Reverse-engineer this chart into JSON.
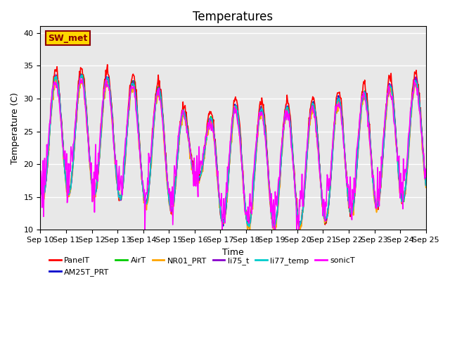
{
  "title": "Temperatures",
  "xlabel": "Time",
  "ylabel": "Temperature (C)",
  "ylim": [
    10,
    41
  ],
  "x_tick_labels": [
    "Sep 10",
    "Sep 11",
    "Sep 12",
    "Sep 13",
    "Sep 14",
    "Sep 15",
    "Sep 16",
    "Sep 17",
    "Sep 18",
    "Sep 19",
    "Sep 20",
    "Sep 21",
    "Sep 22",
    "Sep 23",
    "Sep 24",
    "Sep 25"
  ],
  "annotation_text": "SW_met",
  "annotation_color": "#8B0000",
  "annotation_bg": "#FFD700",
  "series_names": [
    "PanelT",
    "AM25T_PRT",
    "AirT",
    "NR01_PRT",
    "li75_t",
    "li77_temp",
    "sonicT"
  ],
  "series_colors": [
    "#FF0000",
    "#0000CC",
    "#00CC00",
    "#FFA500",
    "#8800CC",
    "#00CCCC",
    "#FF00FF"
  ],
  "bg_color": "#E8E8E8",
  "grid_color": "#FFFFFF",
  "fig_bg": "#FFFFFF",
  "title_fontsize": 12,
  "label_fontsize": 9,
  "tick_fontsize": 8
}
